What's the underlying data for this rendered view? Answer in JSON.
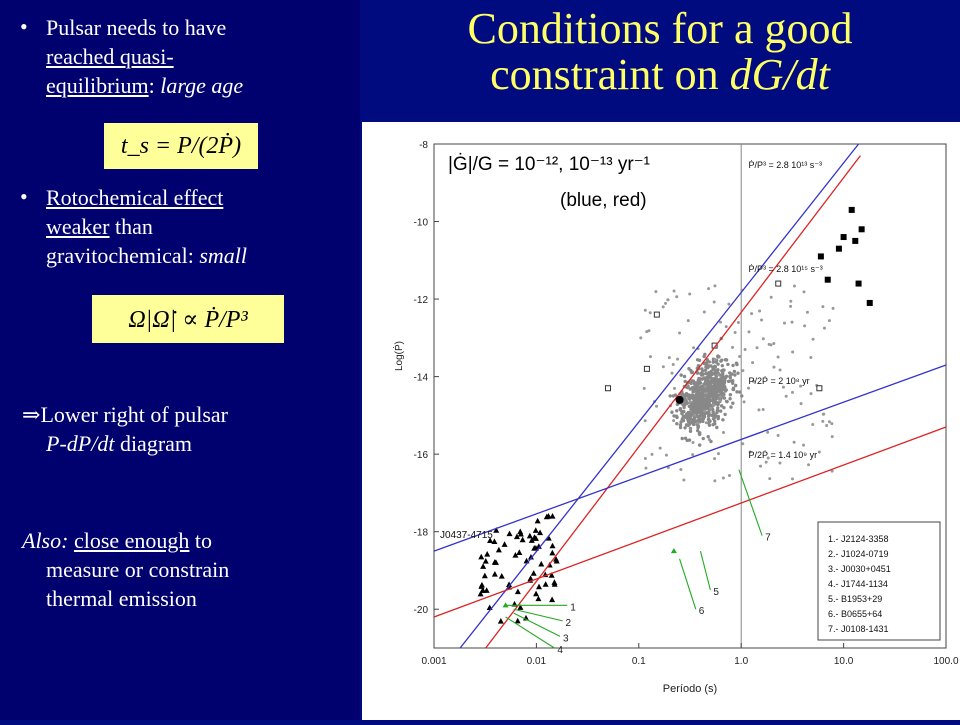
{
  "left": {
    "bullet_char": "•",
    "b1_line1": "Pulsar needs to have",
    "b1_line2": "reached quasi-",
    "b1_line3a": "equilibrium",
    "b1_line3b": ": ",
    "b1_line3c": "large age",
    "eq1": "t_s = P/(2Ṗ)",
    "b2_line1": "Rotochemical effect",
    "b2_line2a": "weaker",
    "b2_line2b": " than",
    "b2_line3a": "gravitochemical: ",
    "b2_line3b": "small",
    "eq2": "Ω|Ω̇| ∝ Ṗ/P³",
    "arrow": "⇒",
    "p3_line1": "Lower right of pulsar",
    "p3_line2a": "P-dP/dt",
    "p3_line2b": " diagram",
    "p4_line1a": "Also: ",
    "p4_line1b": "close enough",
    "p4_line1c": " to",
    "p4_line2": "measure  or constrain",
    "p4_line3": "thermal emission"
  },
  "title_line1": "Conditions for a good",
  "title_line2a": "constraint on ",
  "title_line2b": "dG/dt",
  "chart_data": {
    "type": "scatter",
    "xlabel": "Período (s)",
    "ylabel": "Log(Ṗ)",
    "x_scale": "log",
    "xlim": [
      0.001,
      100.0
    ],
    "ylim": [
      -21,
      -8
    ],
    "x_ticks": [
      "0.001",
      "0.01",
      "0.1",
      "1.0",
      "10.0",
      "100.0"
    ],
    "y_ticks": [
      "-8",
      "-10",
      "-12",
      "-14",
      "-16",
      "-18",
      "-20"
    ],
    "annotation_eq": "|Ġ|/G = 10⁻¹², 10⁻¹³ yr⁻¹",
    "annotation_colors": "(blue, red)",
    "line_labels": [
      "Ṗ/P³ = 2.8 10¹³ s⁻³",
      "Ṗ/P³ = 2.8 10¹⁵ s⁻³",
      "P/2Ṗ = 2 10⁸ yr",
      "P/2Ṗ = 1.4 10⁹ yr"
    ],
    "pulsar_label": "J0437-4715",
    "legend": [
      "1.- J2124-3358",
      "2.- J1024-0719",
      "3.- J0030+0451",
      "4.- J1744-1134",
      "5.- B1953+29",
      "6.- B0655+64",
      "7.- J0108-1431"
    ],
    "marker_numbers": [
      "1",
      "2",
      "3",
      "4",
      "5",
      "6",
      "7"
    ],
    "vertical_line_x": 1.0,
    "series": [
      {
        "name": "blue",
        "points": [
          [
            0.0018,
            -21
          ],
          [
            14,
            -8
          ]
        ]
      },
      {
        "name": "red",
        "points": [
          [
            0.0032,
            -21
          ],
          [
            14.6,
            -8.3
          ]
        ]
      },
      {
        "name": "blue",
        "points": [
          [
            0.001,
            -18.5
          ],
          [
            100,
            -13.7
          ]
        ]
      },
      {
        "name": "red",
        "points": [
          [
            0.001,
            -20.2
          ],
          [
            100,
            -15.3
          ]
        ]
      }
    ],
    "colors": {
      "blue": "#3333cc",
      "red": "#dd2222",
      "green": "#22aa22",
      "equation_box": "#ffff99",
      "title": "#ffff66"
    }
  }
}
